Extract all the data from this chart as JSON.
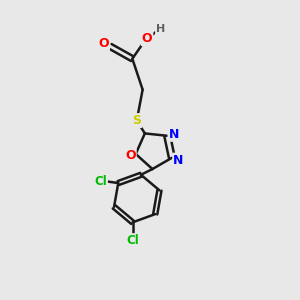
{
  "background_color": "#e8e8e8",
  "bond_color": "#1a1a1a",
  "atom_colors": {
    "O": "#ff0000",
    "N": "#0000ff",
    "S": "#cccc00",
    "Cl": "#00bb00",
    "H": "#606060",
    "C": "#1a1a1a"
  },
  "figsize": [
    3.0,
    3.0
  ],
  "dpi": 100
}
